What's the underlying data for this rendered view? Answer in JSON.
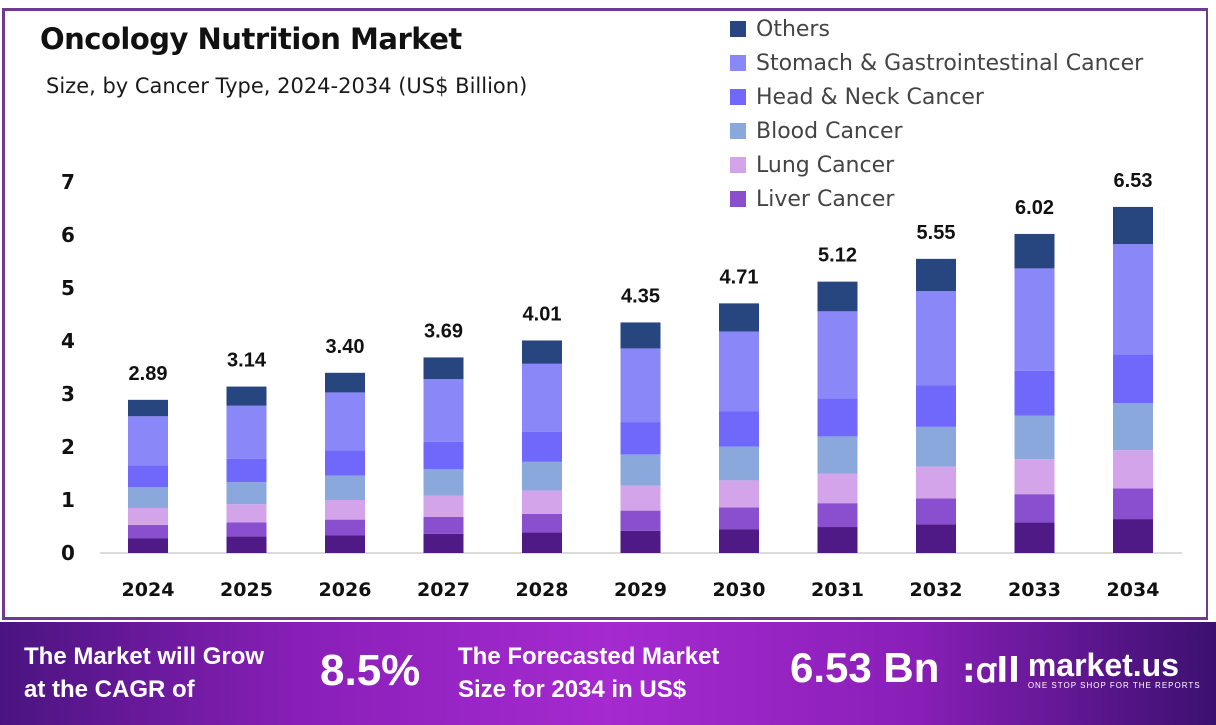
{
  "header": {
    "title": "Oncology Nutrition Market",
    "subtitle": "Size, by Cancer Type, 2024-2034 (US$ Billion)"
  },
  "chart_data": {
    "type": "bar",
    "stacked": true,
    "title": "Oncology Nutrition Market",
    "subtitle": "Size, by Cancer Type, 2024-2034 (US$ Billion)",
    "xlabel": "",
    "ylabel": "",
    "ylim": [
      0,
      7
    ],
    "yticks": [
      0,
      1,
      2,
      3,
      4,
      5,
      6,
      7
    ],
    "grid": false,
    "legend_position": "top-right",
    "categories": [
      "2024",
      "2025",
      "2026",
      "2027",
      "2028",
      "2029",
      "2030",
      "2031",
      "2032",
      "2033",
      "2034"
    ],
    "totals": [
      2.89,
      3.14,
      3.4,
      3.69,
      4.01,
      4.35,
      4.71,
      5.12,
      5.55,
      6.02,
      6.53
    ],
    "total_labels": [
      "2.89",
      "3.14",
      "3.40",
      "3.69",
      "4.01",
      "4.35",
      "4.71",
      "5.12",
      "5.55",
      "6.02",
      "6.53"
    ],
    "series_note": "Bottom series is drawn in the chart but has no legend entry; values are visual estimates scaled to the printed totals.",
    "series": [
      {
        "name": "",
        "legend": false,
        "color": "#4f1a86",
        "values": [
          0.28,
          0.31,
          0.33,
          0.36,
          0.39,
          0.42,
          0.45,
          0.49,
          0.54,
          0.58,
          0.64
        ]
      },
      {
        "name": "Liver Cancer",
        "legend": true,
        "color": "#8a4fcf",
        "values": [
          0.25,
          0.27,
          0.3,
          0.32,
          0.35,
          0.38,
          0.41,
          0.45,
          0.49,
          0.53,
          0.58
        ]
      },
      {
        "name": "Lung Cancer",
        "legend": true,
        "color": "#d4a4ea",
        "values": [
          0.32,
          0.34,
          0.37,
          0.4,
          0.44,
          0.47,
          0.51,
          0.56,
          0.6,
          0.66,
          0.72
        ]
      },
      {
        "name": "Blood Cancer",
        "legend": true,
        "color": "#8aa8dc",
        "values": [
          0.39,
          0.42,
          0.46,
          0.5,
          0.54,
          0.59,
          0.64,
          0.7,
          0.75,
          0.82,
          0.89
        ]
      },
      {
        "name": "Head & Neck Cancer",
        "legend": true,
        "color": "#7068fa",
        "values": [
          0.41,
          0.44,
          0.48,
          0.52,
          0.57,
          0.61,
          0.66,
          0.72,
          0.78,
          0.85,
          0.92
        ]
      },
      {
        "name": "Stomach & Gastrointestinal Cancer",
        "legend": true,
        "color": "#8a87f8",
        "values": [
          0.93,
          1.0,
          1.09,
          1.18,
          1.28,
          1.39,
          1.51,
          1.64,
          1.78,
          1.93,
          2.08
        ]
      },
      {
        "name": "Others",
        "legend": true,
        "color": "#27457e",
        "values": [
          0.31,
          0.36,
          0.37,
          0.41,
          0.44,
          0.49,
          0.53,
          0.56,
          0.61,
          0.65,
          0.7
        ]
      }
    ]
  },
  "legend": {
    "items": [
      {
        "label": "Others",
        "color": "#27457e"
      },
      {
        "label": "Stomach & Gastrointestinal Cancer",
        "color": "#8a87f8"
      },
      {
        "label": "Head & Neck Cancer",
        "color": "#7068fa"
      },
      {
        "label": "Blood Cancer",
        "color": "#8aa8dc"
      },
      {
        "label": "Lung Cancer",
        "color": "#d4a4ea"
      },
      {
        "label": "Liver Cancer",
        "color": "#8a4fcf"
      }
    ]
  },
  "footer": {
    "cagr_label": "The Market will Grow at the CAGR of",
    "cagr_label_line1": "The Market will Grow",
    "cagr_label_line2": "at the CAGR of",
    "cagr_value": "8.5%",
    "forecast_label_line1": "The Forecasted Market",
    "forecast_label_line2": "Size for 2034 in US$",
    "forecast_value": "6.53 Bn",
    "brand_name": "market.us",
    "brand_tagline": "ONE STOP SHOP FOR THE REPORTS",
    "brand_icon": "market-us-logo-icon"
  }
}
